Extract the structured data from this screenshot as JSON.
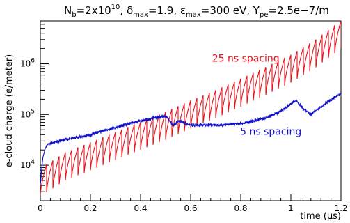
{
  "chart_data": {
    "type": "line",
    "title": {
      "nb_label": "N",
      "nb_sub": "b",
      "nb_value": "=2x10",
      "nb_exp": "10",
      "delta_label": ", δ",
      "delta_sub": "max",
      "delta_value": "=1.9, ",
      "eps_label": "ε",
      "eps_sub": "max",
      "eps_value": "=300 eV, Y",
      "ype_sub": "pe",
      "ype_value": "=2.5e−7/m"
    },
    "xlabel": "time (μs)",
    "ylabel": "e-cloud charge (e/meter)",
    "xlim": [
      0,
      1.2
    ],
    "ylim": [
      2000,
      7000000
    ],
    "yscale": "log",
    "grid": false,
    "x_ticks": [
      "0",
      "0.2",
      "0.4",
      "0.6",
      "0.8",
      "1",
      "1.2"
    ],
    "x_tick_values": [
      0,
      0.2,
      0.4,
      0.6,
      0.8,
      1.0,
      1.2
    ],
    "y_ticks": [
      {
        "base": "10",
        "exp": "4",
        "value": 10000
      },
      {
        "base": "10",
        "exp": "5",
        "value": 100000
      },
      {
        "base": "10",
        "exp": "6",
        "value": 1000000
      }
    ],
    "series": [
      {
        "name": "25 ns spacing",
        "color": "#e8101a",
        "sawtooth_period": 0.025,
        "sawtooth_drop": 0.55,
        "x": [
          0,
          0.005,
          0.01,
          0.015,
          0.025,
          0.1,
          0.2,
          0.3,
          0.4,
          0.5,
          0.6,
          0.7,
          0.8,
          0.9,
          1.0,
          1.1,
          1.2
        ],
        "y": [
          5000,
          4000,
          3200,
          2800,
          5500,
          9500,
          15000,
          24000,
          38000,
          60000,
          100000,
          160000,
          270000,
          460000,
          800000,
          1600000,
          3800000
        ]
      },
      {
        "name": "5 ns spacing",
        "color": "#1010c8",
        "x": [
          0,
          0.005,
          0.01,
          0.02,
          0.03,
          0.05,
          0.1,
          0.2,
          0.3,
          0.35,
          0.4,
          0.45,
          0.5,
          0.52,
          0.53,
          0.55,
          0.6,
          0.7,
          0.8,
          0.9,
          0.95,
          1.0,
          1.02,
          1.05,
          1.08,
          1.1,
          1.15,
          1.2
        ],
        "y": [
          4000,
          8000,
          14000,
          22000,
          26000,
          28000,
          32000,
          40000,
          56000,
          65000,
          75000,
          85000,
          95000,
          70000,
          60000,
          75000,
          62000,
          62000,
          66000,
          85000,
          110000,
          160000,
          190000,
          130000,
          100000,
          120000,
          180000,
          260000
        ]
      }
    ],
    "annotations": [
      {
        "text": "25 ns spacing",
        "color": "#e8101a",
        "x": 0.82,
        "y": 1100000
      },
      {
        "text": "5 ns spacing",
        "color": "#1010c8",
        "x": 0.92,
        "y": 40000
      }
    ]
  }
}
